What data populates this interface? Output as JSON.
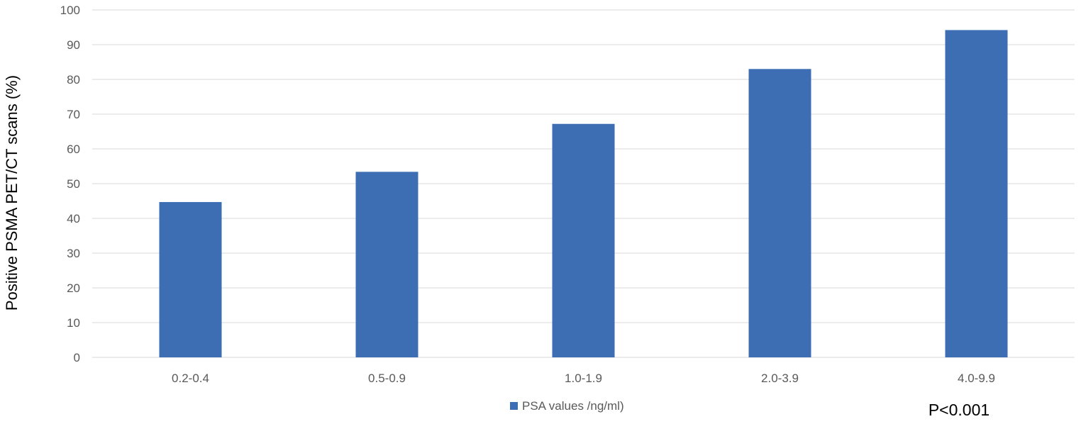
{
  "chart_data": {
    "type": "bar",
    "categories": [
      "0.2-0.4",
      "0.5-0.9",
      "1.0-1.9",
      "2.0-3.9",
      "4.0-9.9"
    ],
    "series": [
      {
        "name": "PSA values /ng/ml)",
        "values": [
          44.7,
          53.4,
          67.2,
          83.0,
          94.2
        ]
      }
    ],
    "title": "",
    "xlabel": "",
    "ylabel": "Positive PSMA PET/CT scans (%)",
    "ylim": [
      0,
      100
    ],
    "yticks": [
      0,
      10,
      20,
      30,
      40,
      50,
      60,
      70,
      80,
      90,
      100
    ],
    "grid": true,
    "legend_position": "bottom",
    "annotation": "P<0.001",
    "colors": {
      "bar": "#3D6EB4",
      "grid": "#D9D9D9",
      "tick_text": "#595959"
    }
  }
}
